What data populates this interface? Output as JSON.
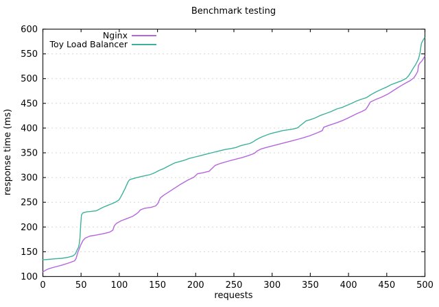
{
  "colors": {
    "background": "#ffffff",
    "border": "#1c1c1c",
    "grid": "#d6d6d6",
    "text": "#000000",
    "nginx_line": "#b565dc",
    "toy_lb_line": "#3bb19a"
  },
  "chart_data": {
    "type": "line",
    "title": "Benchmark testing",
    "xlabel": "requests",
    "ylabel": "response time (ms)",
    "xlim": [
      0,
      500
    ],
    "ylim": [
      100,
      600
    ],
    "xticks": [
      0,
      50,
      100,
      150,
      200,
      250,
      300,
      350,
      400,
      450,
      500
    ],
    "yticks": [
      100,
      150,
      200,
      250,
      300,
      350,
      400,
      450,
      500,
      550,
      600
    ],
    "grid": "horizontal-dotted",
    "legend_position": "top-left-inside",
    "series": [
      {
        "name": "Nginx",
        "color": "#b565dc",
        "points": [
          [
            0,
            108
          ],
          [
            4,
            112
          ],
          [
            8,
            115
          ],
          [
            15,
            118
          ],
          [
            25,
            122
          ],
          [
            35,
            127
          ],
          [
            42,
            131
          ],
          [
            44,
            136
          ],
          [
            46,
            147
          ],
          [
            48,
            155
          ],
          [
            50,
            163
          ],
          [
            53,
            172
          ],
          [
            56,
            177
          ],
          [
            62,
            181
          ],
          [
            70,
            183
          ],
          [
            80,
            186
          ],
          [
            88,
            189
          ],
          [
            92,
            193
          ],
          [
            94,
            202
          ],
          [
            97,
            207
          ],
          [
            103,
            212
          ],
          [
            110,
            216
          ],
          [
            118,
            221
          ],
          [
            123,
            226
          ],
          [
            126,
            230
          ],
          [
            128,
            234
          ],
          [
            133,
            237
          ],
          [
            142,
            239
          ],
          [
            148,
            242
          ],
          [
            151,
            247
          ],
          [
            154,
            258
          ],
          [
            158,
            263
          ],
          [
            165,
            270
          ],
          [
            172,
            277
          ],
          [
            180,
            285
          ],
          [
            190,
            294
          ],
          [
            198,
            300
          ],
          [
            203,
            307
          ],
          [
            210,
            309
          ],
          [
            218,
            312
          ],
          [
            222,
            318
          ],
          [
            226,
            324
          ],
          [
            233,
            328
          ],
          [
            242,
            332
          ],
          [
            252,
            336
          ],
          [
            262,
            340
          ],
          [
            270,
            344
          ],
          [
            277,
            348
          ],
          [
            281,
            353
          ],
          [
            286,
            357
          ],
          [
            295,
            361
          ],
          [
            305,
            365
          ],
          [
            315,
            369
          ],
          [
            325,
            373
          ],
          [
            335,
            377
          ],
          [
            342,
            380
          ],
          [
            350,
            384
          ],
          [
            360,
            390
          ],
          [
            366,
            394
          ],
          [
            368,
            401
          ],
          [
            375,
            405
          ],
          [
            385,
            410
          ],
          [
            395,
            416
          ],
          [
            403,
            422
          ],
          [
            412,
            429
          ],
          [
            418,
            433
          ],
          [
            423,
            437
          ],
          [
            426,
            444
          ],
          [
            429,
            452
          ],
          [
            436,
            457
          ],
          [
            444,
            462
          ],
          [
            452,
            468
          ],
          [
            460,
            476
          ],
          [
            468,
            484
          ],
          [
            475,
            490
          ],
          [
            481,
            495
          ],
          [
            486,
            501
          ],
          [
            489,
            508
          ],
          [
            491,
            514
          ],
          [
            492,
            526
          ],
          [
            494,
            531
          ],
          [
            497,
            536
          ],
          [
            500,
            544
          ]
        ]
      },
      {
        "name": "Toy Load Balancer",
        "color": "#3bb19a",
        "points": [
          [
            0,
            133
          ],
          [
            8,
            134
          ],
          [
            16,
            135
          ],
          [
            25,
            136
          ],
          [
            33,
            138
          ],
          [
            40,
            141
          ],
          [
            43,
            145
          ],
          [
            45,
            152
          ],
          [
            47,
            158
          ],
          [
            48,
            165
          ],
          [
            49,
            178
          ],
          [
            50,
            205
          ],
          [
            51,
            224
          ],
          [
            53,
            228
          ],
          [
            58,
            230
          ],
          [
            64,
            231
          ],
          [
            70,
            232
          ],
          [
            74,
            235
          ],
          [
            79,
            239
          ],
          [
            85,
            243
          ],
          [
            90,
            246
          ],
          [
            96,
            250
          ],
          [
            100,
            254
          ],
          [
            102,
            259
          ],
          [
            104,
            265
          ],
          [
            106,
            271
          ],
          [
            108,
            277
          ],
          [
            110,
            284
          ],
          [
            112,
            291
          ],
          [
            114,
            295
          ],
          [
            118,
            297
          ],
          [
            123,
            299
          ],
          [
            128,
            301
          ],
          [
            134,
            303
          ],
          [
            140,
            305
          ],
          [
            144,
            307
          ],
          [
            148,
            310
          ],
          [
            153,
            314
          ],
          [
            158,
            317
          ],
          [
            163,
            321
          ],
          [
            168,
            325
          ],
          [
            173,
            329
          ],
          [
            178,
            331
          ],
          [
            185,
            334
          ],
          [
            192,
            338
          ],
          [
            200,
            341
          ],
          [
            208,
            344
          ],
          [
            215,
            347
          ],
          [
            223,
            350
          ],
          [
            231,
            353
          ],
          [
            239,
            356
          ],
          [
            247,
            358
          ],
          [
            253,
            360
          ],
          [
            258,
            363
          ],
          [
            265,
            366
          ],
          [
            271,
            368
          ],
          [
            275,
            371
          ],
          [
            280,
            376
          ],
          [
            285,
            380
          ],
          [
            291,
            384
          ],
          [
            298,
            388
          ],
          [
            306,
            391
          ],
          [
            314,
            394
          ],
          [
            322,
            396
          ],
          [
            330,
            398
          ],
          [
            334,
            400
          ],
          [
            337,
            404
          ],
          [
            341,
            409
          ],
          [
            345,
            414
          ],
          [
            350,
            416
          ],
          [
            357,
            420
          ],
          [
            364,
            425
          ],
          [
            371,
            429
          ],
          [
            378,
            433
          ],
          [
            385,
            438
          ],
          [
            392,
            441
          ],
          [
            398,
            445
          ],
          [
            404,
            449
          ],
          [
            411,
            454
          ],
          [
            418,
            458
          ],
          [
            424,
            461
          ],
          [
            430,
            467
          ],
          [
            437,
            473
          ],
          [
            444,
            478
          ],
          [
            450,
            482
          ],
          [
            456,
            487
          ],
          [
            463,
            491
          ],
          [
            470,
            495
          ],
          [
            476,
            500
          ],
          [
            479,
            505
          ],
          [
            482,
            512
          ],
          [
            485,
            520
          ],
          [
            488,
            527
          ],
          [
            490,
            533
          ],
          [
            492,
            539
          ],
          [
            493,
            545
          ],
          [
            494,
            551
          ],
          [
            495,
            562
          ],
          [
            496,
            571
          ],
          [
            498,
            577
          ],
          [
            500,
            582
          ]
        ]
      }
    ]
  }
}
